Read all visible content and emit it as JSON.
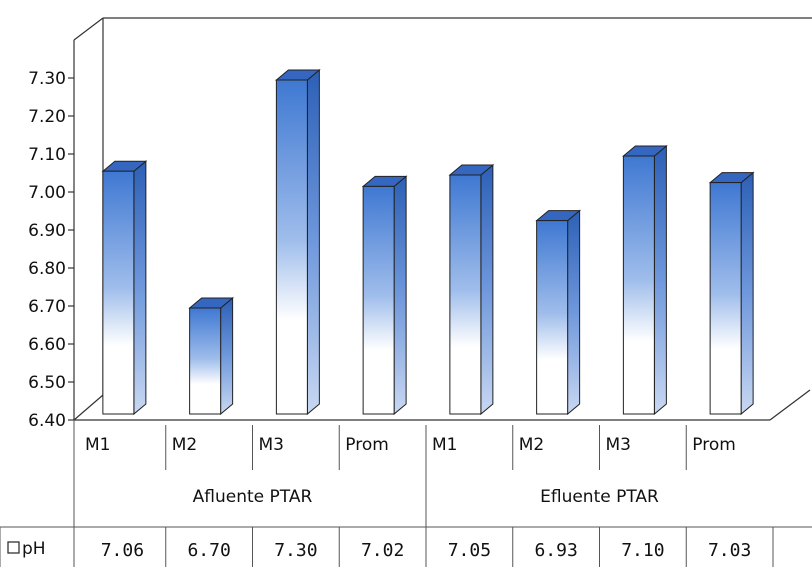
{
  "chart_data": {
    "type": "bar",
    "three_d": true,
    "y_ticks": [
      "6.40",
      "6.50",
      "6.60",
      "6.70",
      "6.80",
      "6.90",
      "7.00",
      "7.10",
      "7.20",
      "7.30"
    ],
    "ylim": [
      6.4,
      7.33
    ],
    "categories": [
      "M1",
      "M2",
      "M3",
      "Prom",
      "M1",
      "M2",
      "M3",
      "Prom"
    ],
    "groups": [
      {
        "label": "Afluente PTAR",
        "span": [
          0,
          3
        ]
      },
      {
        "label": "Efluente PTAR",
        "span": [
          4,
          7
        ]
      }
    ],
    "series": [
      {
        "name": "pH",
        "values": [
          7.06,
          6.7,
          7.3,
          7.02,
          7.05,
          6.93,
          7.1,
          7.03
        ],
        "value_labels": [
          "7.06",
          "6.70",
          "7.30",
          "7.02",
          "7.05",
          "6.93",
          "7.10",
          "7.03"
        ],
        "color": "#4a7fd0"
      }
    ],
    "legend_in_table": true,
    "grid": false
  }
}
